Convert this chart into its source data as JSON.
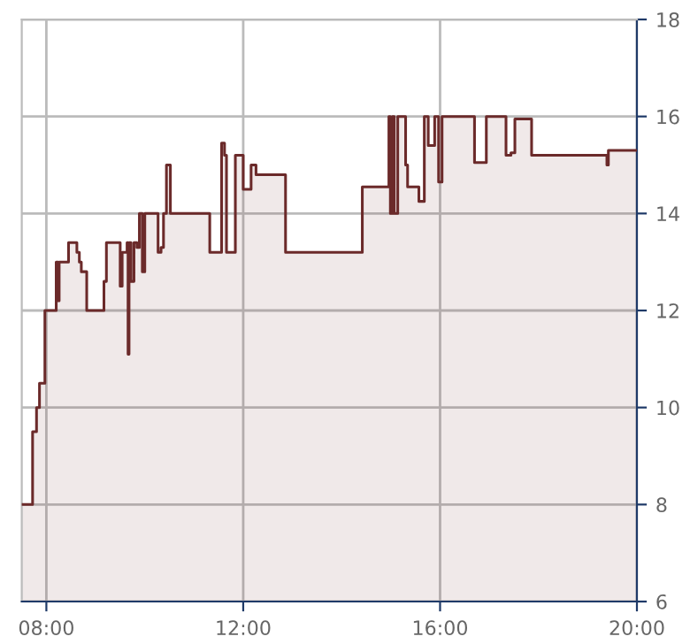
{
  "chart_data": {
    "type": "area",
    "xlim": [
      7.5,
      20
    ],
    "ylim": [
      6,
      18
    ],
    "xticks": [
      {
        "value": 8,
        "label": "08:00"
      },
      {
        "value": 12,
        "label": "12:00"
      },
      {
        "value": 16,
        "label": "16:00"
      },
      {
        "value": 20,
        "label": "20:00"
      }
    ],
    "yticks": [
      6,
      8,
      10,
      12,
      14,
      16,
      18
    ],
    "grid": true,
    "marker": "none",
    "line_style": "solid",
    "series": [
      {
        "color": "#6b2a2a",
        "x": [
          7.5,
          7.72,
          7.72,
          7.8,
          7.8,
          7.86,
          7.86,
          7.97,
          7.97,
          8.2,
          8.2,
          8.24,
          8.24,
          8.26,
          8.26,
          8.45,
          8.45,
          8.62,
          8.62,
          8.67,
          8.67,
          8.71,
          8.71,
          8.82,
          8.82,
          9.17,
          9.17,
          9.22,
          9.22,
          9.5,
          9.5,
          9.54,
          9.54,
          9.64,
          9.64,
          9.66,
          9.66,
          9.68,
          9.68,
          9.72,
          9.72,
          9.78,
          9.78,
          9.84,
          9.84,
          9.89,
          9.89,
          9.95,
          9.95,
          10.0,
          10.0,
          10.27,
          10.27,
          10.33,
          10.33,
          10.38,
          10.38,
          10.44,
          10.44,
          10.52,
          10.52,
          11.32,
          11.32,
          11.56,
          11.56,
          11.62,
          11.62,
          11.66,
          11.66,
          11.84,
          11.84,
          12.0,
          12.0,
          12.16,
          12.16,
          12.26,
          12.26,
          12.86,
          12.86,
          14.42,
          14.42,
          14.96,
          14.96,
          14.99,
          14.99,
          15.03,
          15.03,
          15.07,
          15.07,
          15.14,
          15.14,
          15.3,
          15.3,
          15.34,
          15.34,
          15.57,
          15.57,
          15.68,
          15.68,
          15.76,
          15.76,
          15.89,
          15.89,
          15.97,
          15.97,
          16.04,
          16.04,
          16.7,
          16.7,
          16.94,
          16.94,
          17.34,
          17.34,
          17.44,
          17.44,
          17.52,
          17.52,
          17.86,
          17.86,
          19.39,
          19.39,
          19.42,
          19.42,
          20.0
        ],
        "values": [
          8.0,
          8.0,
          9.5,
          9.5,
          10.0,
          10.0,
          10.5,
          10.5,
          12.0,
          12.0,
          13.0,
          13.0,
          12.2,
          12.2,
          13.0,
          13.0,
          13.4,
          13.4,
          13.2,
          13.2,
          13.0,
          13.0,
          12.8,
          12.8,
          12.0,
          12.0,
          12.6,
          12.6,
          13.4,
          13.4,
          12.5,
          12.5,
          13.2,
          13.2,
          13.4,
          13.4,
          11.1,
          11.1,
          13.4,
          13.4,
          12.6,
          12.6,
          13.4,
          13.4,
          13.3,
          13.3,
          14.0,
          14.0,
          12.8,
          12.8,
          14.0,
          14.0,
          13.2,
          13.2,
          13.3,
          13.3,
          14.0,
          14.0,
          15.0,
          15.0,
          14.0,
          14.0,
          13.2,
          13.2,
          15.45,
          15.45,
          15.2,
          15.2,
          13.2,
          13.2,
          15.2,
          15.2,
          14.5,
          14.5,
          15.0,
          15.0,
          14.8,
          14.8,
          13.2,
          13.2,
          14.55,
          14.55,
          16.0,
          16.0,
          14.0,
          14.0,
          16.0,
          16.0,
          14.0,
          14.0,
          16.0,
          16.0,
          15.0,
          15.0,
          14.55,
          14.55,
          14.25,
          14.25,
          16.0,
          16.0,
          15.4,
          15.4,
          16.0,
          16.0,
          14.65,
          14.65,
          16.0,
          16.0,
          15.05,
          15.05,
          16.0,
          16.0,
          15.2,
          15.2,
          15.25,
          15.25,
          15.95,
          15.95,
          15.2,
          15.2,
          15.0,
          15.0,
          15.3,
          15.3
        ]
      }
    ]
  }
}
